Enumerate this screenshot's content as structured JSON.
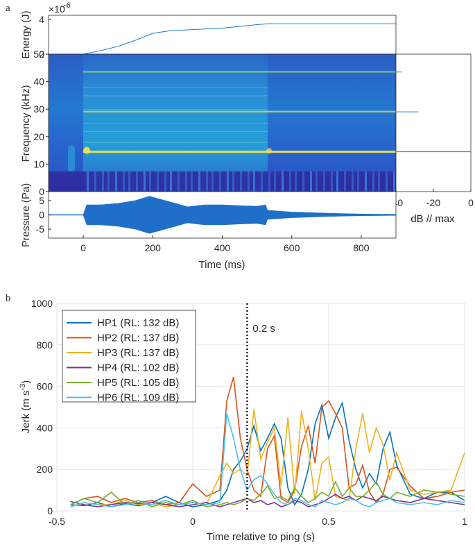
{
  "figure": {
    "panel_a_label": "a",
    "panel_b_label": "b",
    "colors": {
      "axis": "#262626",
      "grid": "#e6e6e6",
      "blue_line": "#1f77d4",
      "spectro_low": "#2b3fb8",
      "spectro_mid": "#1f9fd8",
      "spectro_high": "#f0e640"
    }
  },
  "chart_data": [
    {
      "type": "line",
      "name": "energy",
      "ylabel": "Energy (J)",
      "exponent_label": "×10",
      "exponent_value": "-6",
      "xlim": [
        -100,
        900
      ],
      "ylim": [
        2,
        4
      ],
      "yticks": [
        "2",
        "4"
      ],
      "x": [
        0,
        50,
        100,
        150,
        200,
        250,
        300,
        350,
        400,
        450,
        500,
        530,
        600,
        700,
        800,
        900
      ],
      "y": [
        2.0,
        2.2,
        2.45,
        2.8,
        3.2,
        3.35,
        3.4,
        3.45,
        3.5,
        3.6,
        3.7,
        3.75,
        3.75,
        3.75,
        3.75,
        3.75
      ]
    },
    {
      "type": "heatmap",
      "name": "spectrogram",
      "ylabel": "Frequency (kHz)",
      "ylim": [
        0,
        50
      ],
      "yticks": [
        "0",
        "10",
        "20",
        "30",
        "40",
        "50"
      ],
      "xlim": [
        -100,
        900
      ],
      "tonal_bands_khz": [
        14.5,
        29,
        43.5
      ],
      "signal_window_ms": [
        0,
        530
      ]
    },
    {
      "type": "line",
      "name": "spectrum",
      "xlabel": "dB // max",
      "xlim": [
        -40,
        0
      ],
      "xticks": [
        "-40",
        "-20",
        "0"
      ],
      "peaks": [
        {
          "khz": 43.5,
          "db": -37
        },
        {
          "khz": 29,
          "db": -28
        },
        {
          "khz": 14.5,
          "db": 0
        }
      ]
    },
    {
      "type": "area",
      "name": "pressure",
      "ylabel": "Pressure (Pa)",
      "xlabel": "Time (ms)",
      "xlim": [
        -100,
        900
      ],
      "ylim": [
        -8,
        8
      ],
      "yticks": [
        "-5",
        "0",
        "5"
      ],
      "xticks": [
        "0",
        "200",
        "400",
        "600",
        "800"
      ],
      "envelope_x": [
        -100,
        0,
        10,
        50,
        100,
        150,
        190,
        250,
        300,
        350,
        400,
        450,
        500,
        525,
        530,
        600,
        700,
        800,
        900
      ],
      "envelope_y": [
        0.1,
        0.1,
        3.5,
        3.5,
        4.0,
        5.0,
        6.5,
        4.5,
        2.8,
        3.5,
        3.5,
        3.2,
        3.0,
        3.5,
        1.6,
        1.0,
        0.6,
        0.3,
        0.2
      ]
    },
    {
      "type": "line",
      "name": "jerk",
      "ylabel": "Jerk (m s⁻³)",
      "xlabel": "Time relative to ping (s)",
      "xlim": [
        -0.5,
        1
      ],
      "ylim": [
        0,
        1000
      ],
      "xticks": [
        "-0.5",
        "0",
        "0.5",
        "1"
      ],
      "yticks": [
        "0",
        "200",
        "400",
        "600",
        "800",
        "1000"
      ],
      "marker": {
        "x": 0.2,
        "label": "0.2 s"
      },
      "x": [
        -0.45,
        -0.4,
        -0.35,
        -0.3,
        -0.25,
        -0.2,
        -0.15,
        -0.1,
        -0.05,
        0.0,
        0.05,
        0.1,
        0.125,
        0.15,
        0.175,
        0.2,
        0.225,
        0.25,
        0.275,
        0.3,
        0.325,
        0.35,
        0.375,
        0.4,
        0.425,
        0.45,
        0.475,
        0.5,
        0.525,
        0.55,
        0.575,
        0.6,
        0.625,
        0.65,
        0.675,
        0.7,
        0.725,
        0.75,
        0.8,
        0.85,
        0.9,
        0.95,
        1.0
      ],
      "series": [
        {
          "name": "HP1 (RL: 132 dB)",
          "color": "#0072BD",
          "values": [
            30,
            25,
            40,
            20,
            35,
            25,
            40,
            70,
            40,
            20,
            30,
            50,
            100,
            200,
            240,
            300,
            410,
            290,
            350,
            420,
            350,
            110,
            30,
            80,
            200,
            420,
            510,
            350,
            450,
            520,
            340,
            200,
            110,
            180,
            130,
            300,
            380,
            220,
            80,
            60,
            90,
            90,
            50
          ]
        },
        {
          "name": "HP2 (RL: 137 dB)",
          "color": "#D95319",
          "values": [
            30,
            60,
            70,
            40,
            60,
            40,
            50,
            30,
            40,
            130,
            70,
            100,
            530,
            645,
            350,
            200,
            100,
            70,
            300,
            360,
            60,
            40,
            100,
            310,
            410,
            230,
            500,
            530,
            470,
            400,
            110,
            130,
            220,
            90,
            40,
            80,
            200,
            210,
            120,
            60,
            70,
            90,
            100
          ]
        },
        {
          "name": "HP3 (RL: 137 dB)",
          "color": "#EDB120",
          "values": [
            20,
            40,
            30,
            30,
            50,
            30,
            40,
            20,
            30,
            40,
            30,
            170,
            230,
            180,
            200,
            170,
            490,
            250,
            330,
            400,
            120,
            450,
            80,
            480,
            300,
            50,
            230,
            260,
            70,
            60,
            50,
            300,
            470,
            280,
            400,
            320,
            150,
            280,
            100,
            80,
            90,
            100,
            280
          ]
        },
        {
          "name": "HP4 (RL: 102 dB)",
          "color": "#7E2F8E",
          "values": [
            45,
            30,
            20,
            30,
            40,
            35,
            40,
            30,
            20,
            30,
            40,
            20,
            30,
            40,
            50,
            60,
            40,
            50,
            30,
            40,
            20,
            30,
            50,
            40,
            20,
            30,
            40,
            60,
            80,
            60,
            70,
            50,
            70,
            60,
            50,
            70,
            60,
            50,
            40,
            60,
            50,
            40,
            30
          ]
        },
        {
          "name": "HP5 (RL: 105 dB)",
          "color": "#77AC30",
          "values": [
            30,
            60,
            40,
            90,
            30,
            50,
            20,
            40,
            30,
            50,
            20,
            30,
            40,
            30,
            40,
            60,
            50,
            80,
            120,
            60,
            70,
            50,
            110,
            70,
            40,
            60,
            90,
            70,
            140,
            70,
            110,
            70,
            70,
            100,
            140,
            80,
            60,
            90,
            70,
            100,
            90,
            80,
            70
          ]
        },
        {
          "name": "HP6 (RL: 109 dB)",
          "color": "#4DBEEE",
          "values": [
            20,
            40,
            30,
            20,
            30,
            40,
            30,
            50,
            30,
            40,
            30,
            40,
            470,
            350,
            200,
            100,
            150,
            170,
            130,
            80,
            40,
            30,
            60,
            50,
            30,
            20,
            50,
            40,
            30,
            40,
            60,
            50,
            30,
            20,
            40,
            50,
            60,
            40,
            30,
            40,
            30,
            50,
            40
          ]
        }
      ]
    }
  ]
}
